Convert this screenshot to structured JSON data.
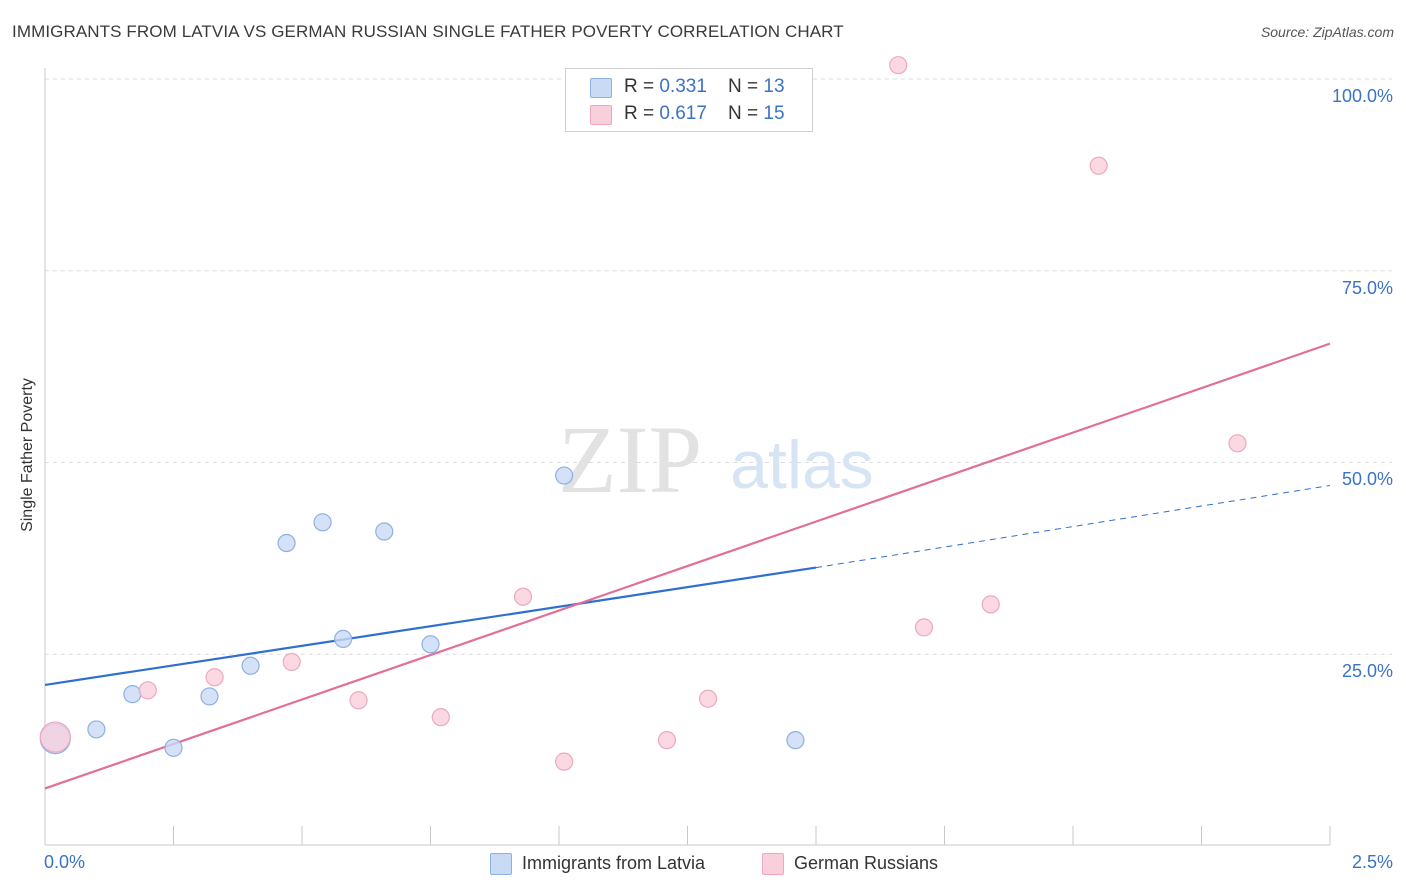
{
  "title": "IMMIGRANTS FROM LATVIA VS GERMAN RUSSIAN SINGLE FATHER POVERTY CORRELATION CHART",
  "source": "Source: ZipAtlas.com",
  "watermark": {
    "zip": "ZIP",
    "atlas": "atlas"
  },
  "colors": {
    "blue_fill": "#c9daf5",
    "blue_stroke": "#8db1e2",
    "blue_line": "#2f6fcf",
    "pink_fill": "#f9cfdc",
    "pink_stroke": "#eea7bf",
    "pink_line": "#e07098",
    "tick_text": "#3b73c4",
    "grid": "#dcdcdc"
  },
  "legend": {
    "series1": {
      "r_label": "R = ",
      "r_value": "0.331",
      "n_label": "N = ",
      "n_value": "13"
    },
    "series2": {
      "r_label": "R = ",
      "r_value": "0.617",
      "n_label": "N = ",
      "n_value": "15"
    }
  },
  "chart_data": {
    "type": "scatter",
    "title": "IMMIGRANTS FROM LATVIA VS GERMAN RUSSIAN SINGLE FATHER POVERTY CORRELATION CHART",
    "xlabel": "",
    "ylabel": "Single Father Poverty",
    "xlim": [
      0,
      2.5
    ],
    "ylim": [
      0,
      100
    ],
    "x_tick_labels": [
      "0.0%",
      "2.5%"
    ],
    "y_ticks": [
      25,
      50,
      75,
      100
    ],
    "y_tick_labels": [
      "25.0%",
      "50.0%",
      "75.0%",
      "100.0%"
    ],
    "grid": true,
    "legend_position": "top-center",
    "series": [
      {
        "name": "Immigrants from Latvia",
        "color": "#8db1e2",
        "points": [
          {
            "x": 0.02,
            "y": 14.0,
            "large": true
          },
          {
            "x": 0.1,
            "y": 15.2
          },
          {
            "x": 0.17,
            "y": 19.8
          },
          {
            "x": 0.25,
            "y": 12.8
          },
          {
            "x": 0.32,
            "y": 19.5
          },
          {
            "x": 0.4,
            "y": 23.5
          },
          {
            "x": 0.47,
            "y": 39.5
          },
          {
            "x": 0.54,
            "y": 42.2
          },
          {
            "x": 0.58,
            "y": 27.0
          },
          {
            "x": 0.66,
            "y": 41.0
          },
          {
            "x": 0.75,
            "y": 26.3
          },
          {
            "x": 1.01,
            "y": 48.3
          },
          {
            "x": 1.46,
            "y": 13.8
          }
        ],
        "trend": {
          "x1": 0.0,
          "y1": 21.0,
          "x2": 1.5,
          "y2": 36.3,
          "dashed_to_x": 2.5,
          "dashed_to_y": 47.0
        }
      },
      {
        "name": "German Russians",
        "color": "#eea7bf",
        "points": [
          {
            "x": 0.02,
            "y": 14.2,
            "large": true
          },
          {
            "x": 0.2,
            "y": 20.3
          },
          {
            "x": 0.33,
            "y": 22.0
          },
          {
            "x": 0.48,
            "y": 24.0
          },
          {
            "x": 0.61,
            "y": 19.0
          },
          {
            "x": 0.77,
            "y": 16.8
          },
          {
            "x": 0.93,
            "y": 32.5
          },
          {
            "x": 1.01,
            "y": 11.0
          },
          {
            "x": 1.21,
            "y": 13.8
          },
          {
            "x": 1.29,
            "y": 19.2
          },
          {
            "x": 1.66,
            "y": 101.8
          },
          {
            "x": 1.71,
            "y": 28.5
          },
          {
            "x": 1.84,
            "y": 31.5
          },
          {
            "x": 2.05,
            "y": 88.7
          },
          {
            "x": 2.32,
            "y": 52.5
          }
        ],
        "trend": {
          "x1": 0.0,
          "y1": 7.5,
          "x2": 2.5,
          "y2": 65.5
        }
      }
    ]
  },
  "bottom_legend": {
    "series1": "Immigrants from Latvia",
    "series2": "German Russians"
  }
}
